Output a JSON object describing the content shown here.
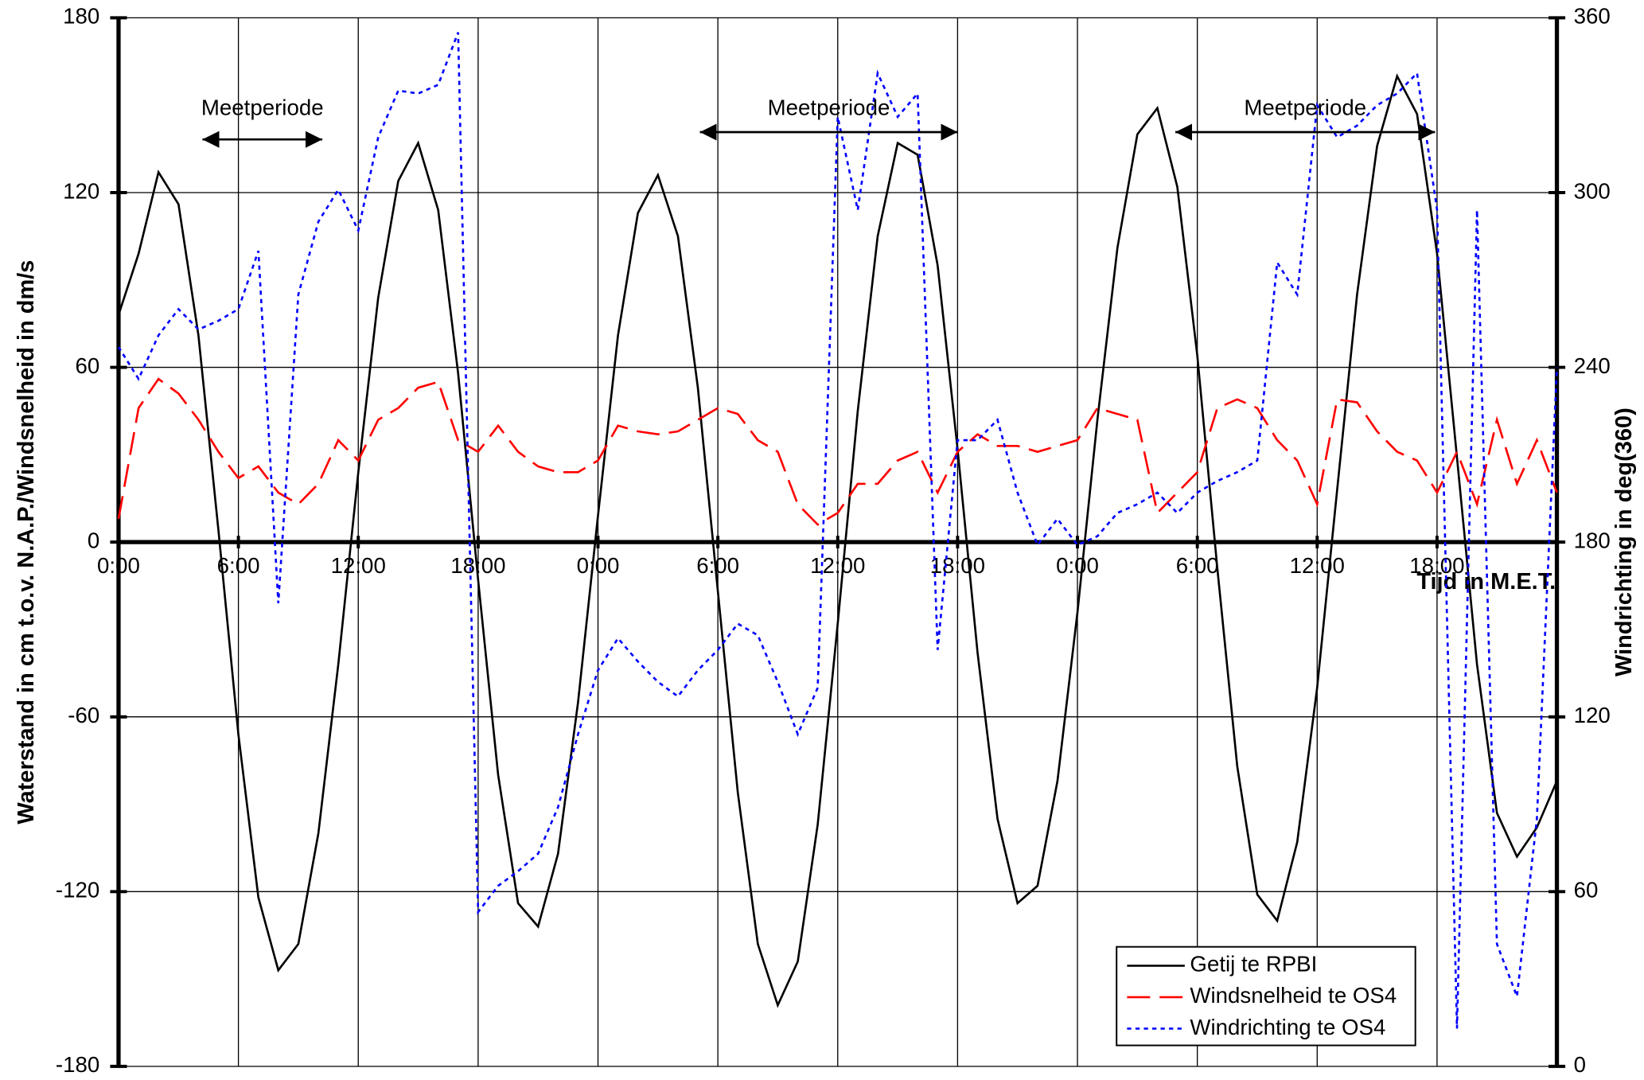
{
  "chart_data": {
    "type": "line",
    "xlabel": "Tijd in M.E.T.",
    "ylabel": "Waterstand in cm t.o.v. N.A.P./Windsnelheid in dm/s",
    "y2label": "Windrichting in deg(360)",
    "x": [
      0,
      1,
      2,
      3,
      4,
      5,
      6,
      7,
      8,
      9,
      10,
      11,
      12,
      13,
      14,
      15,
      16,
      17,
      18,
      19,
      20,
      21,
      22,
      23,
      24,
      25,
      26,
      27,
      28,
      29,
      30,
      31,
      32,
      33,
      34,
      35,
      36,
      37,
      38,
      39,
      40,
      41,
      42,
      43,
      44,
      45,
      46,
      47,
      48,
      49,
      50,
      51,
      52,
      53,
      54,
      55,
      56,
      57,
      58,
      59,
      60,
      61,
      62,
      63,
      64,
      65,
      66,
      67,
      68,
      69,
      70,
      71,
      72
    ],
    "xlim": [
      0,
      72
    ],
    "xticks": [
      {
        "value": 0,
        "label": "0:00"
      },
      {
        "value": 6,
        "label": "6:00"
      },
      {
        "value": 12,
        "label": "12:00"
      },
      {
        "value": 18,
        "label": "18:00"
      },
      {
        "value": 24,
        "label": "0:00"
      },
      {
        "value": 30,
        "label": "6:00"
      },
      {
        "value": 36,
        "label": "12:00"
      },
      {
        "value": 42,
        "label": "18:00"
      },
      {
        "value": 48,
        "label": "0:00"
      },
      {
        "value": 54,
        "label": "6:00"
      },
      {
        "value": 60,
        "label": "12:00"
      },
      {
        "value": 66,
        "label": "18:00"
      }
    ],
    "ylim": [
      -180,
      180
    ],
    "yticks": [
      -180,
      -120,
      -60,
      0,
      60,
      120,
      180
    ],
    "y2lim": [
      0,
      360
    ],
    "y2ticks": [
      0,
      60,
      120,
      180,
      240,
      300,
      360
    ],
    "grid": true,
    "legend": "lower right",
    "series": [
      {
        "name": "Getij te RPBI",
        "color": "#000000",
        "style": "solid",
        "values": [
          78,
          99,
          127,
          116,
          71,
          4,
          -66,
          -122,
          -147,
          -138,
          -100,
          -42,
          24,
          84,
          124,
          137,
          114,
          58,
          -13,
          -80,
          -124,
          -132,
          -107,
          -55,
          9,
          71,
          113,
          126,
          105,
          53,
          -17,
          -86,
          -138,
          -159,
          -144,
          -97,
          -28,
          45,
          105,
          137,
          133,
          95,
          32,
          -38,
          -95,
          -124,
          -118,
          -82,
          -24,
          42,
          101,
          140,
          149,
          122,
          64,
          -9,
          -77,
          -121,
          -130,
          -103,
          -50,
          18,
          85,
          136,
          160,
          147,
          99,
          29,
          -42,
          -93,
          -108,
          -98,
          -82
        ]
      },
      {
        "name": "Windsnelheid te OS4",
        "color": "#ff0000",
        "style": "dashed",
        "values": [
          8,
          46,
          56,
          51,
          42,
          31,
          22,
          26,
          17,
          13,
          20,
          35,
          28,
          42,
          46,
          53,
          55,
          35,
          31,
          40,
          31,
          26,
          24,
          24,
          28,
          40,
          38,
          37,
          38,
          42,
          46,
          44,
          35,
          31,
          13,
          6,
          10,
          20,
          20,
          28,
          31,
          17,
          31,
          37,
          33,
          33,
          31,
          33,
          35,
          46,
          44,
          42,
          10,
          17,
          24,
          46,
          49,
          46,
          35,
          28,
          13,
          49,
          48,
          38,
          31,
          28,
          17,
          31,
          13,
          42,
          20,
          35,
          17
        ]
      },
      {
        "name": "Windrichting te OS4",
        "color": "#0000ff",
        "style": "dotted",
        "axis": "y2",
        "values": [
          247,
          236,
          251,
          260,
          253,
          256,
          260,
          280,
          159,
          265,
          290,
          301,
          287,
          319,
          335,
          334,
          337,
          355,
          53,
          62,
          67,
          73,
          89,
          114,
          136,
          147,
          139,
          132,
          127,
          136,
          143,
          152,
          148,
          132,
          114,
          130,
          326,
          294,
          341,
          326,
          334,
          143,
          215,
          215,
          222,
          197,
          179,
          188,
          179,
          182,
          190,
          193,
          197,
          190,
          197,
          201,
          204,
          208,
          276,
          265,
          330,
          319,
          323,
          330,
          334,
          341,
          294,
          13,
          294,
          42,
          24,
          85,
          240
        ]
      }
    ],
    "annotations": [
      {
        "text": "Meetperiode",
        "start": 4.2,
        "end": 10.2
      },
      {
        "text": "Meetperiode",
        "start": 29.1,
        "end": 42
      },
      {
        "text": "Meetperiode",
        "start": 52.9,
        "end": 65.9
      }
    ]
  }
}
